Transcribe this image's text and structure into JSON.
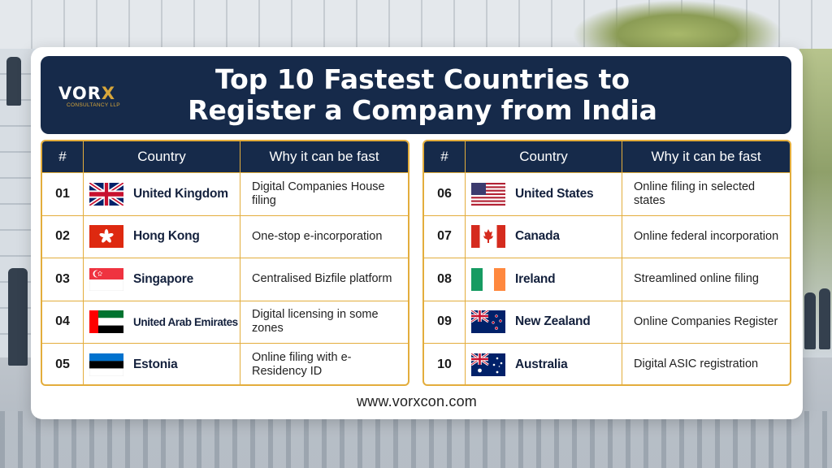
{
  "logo": {
    "brand_pre": "VOR",
    "brand_x": "X",
    "subtitle": "CONSULTANCY LLP"
  },
  "title": {
    "line1": "Top 10 Fastest Countries to",
    "line2": "Register a Company from India"
  },
  "table": {
    "headers": {
      "num": "#",
      "country": "Country",
      "why": "Why it can be fast"
    },
    "left": [
      {
        "num": "01",
        "country": "United Kingdom",
        "why": "Digital Companies House filing",
        "flag": "uk-flag-icon"
      },
      {
        "num": "02",
        "country": "Hong Kong",
        "why": "One-stop e-incorporation",
        "flag": "hong-kong-flag-icon"
      },
      {
        "num": "03",
        "country": "Singapore",
        "why": "Centralised Bizfile platform",
        "flag": "singapore-flag-icon"
      },
      {
        "num": "04",
        "country": "United Arab Emirates",
        "why": "Digital licensing in some zones",
        "flag": "uae-flag-icon"
      },
      {
        "num": "05",
        "country": "Estonia",
        "why": "Online filing with e-Residency ID",
        "flag": "estonia-flag-icon"
      }
    ],
    "right": [
      {
        "num": "06",
        "country": "United States",
        "why": "Online filing in selected states",
        "flag": "us-flag-icon"
      },
      {
        "num": "07",
        "country": "Canada",
        "why": "Online federal incorporation",
        "flag": "canada-flag-icon"
      },
      {
        "num": "08",
        "country": "Ireland",
        "why": "Streamlined online filing",
        "flag": "ireland-flag-icon"
      },
      {
        "num": "09",
        "country": "New Zealand",
        "why": "Online Companies Register",
        "flag": "new-zealand-flag-icon"
      },
      {
        "num": "10",
        "country": "Australia",
        "why": "Digital ASIC registration",
        "flag": "australia-flag-icon"
      }
    ]
  },
  "footer": {
    "url": "www.vorxcon.com"
  },
  "colors": {
    "navy": "#162a4a",
    "gold": "#e3ad3c",
    "card": "#ffffff"
  }
}
